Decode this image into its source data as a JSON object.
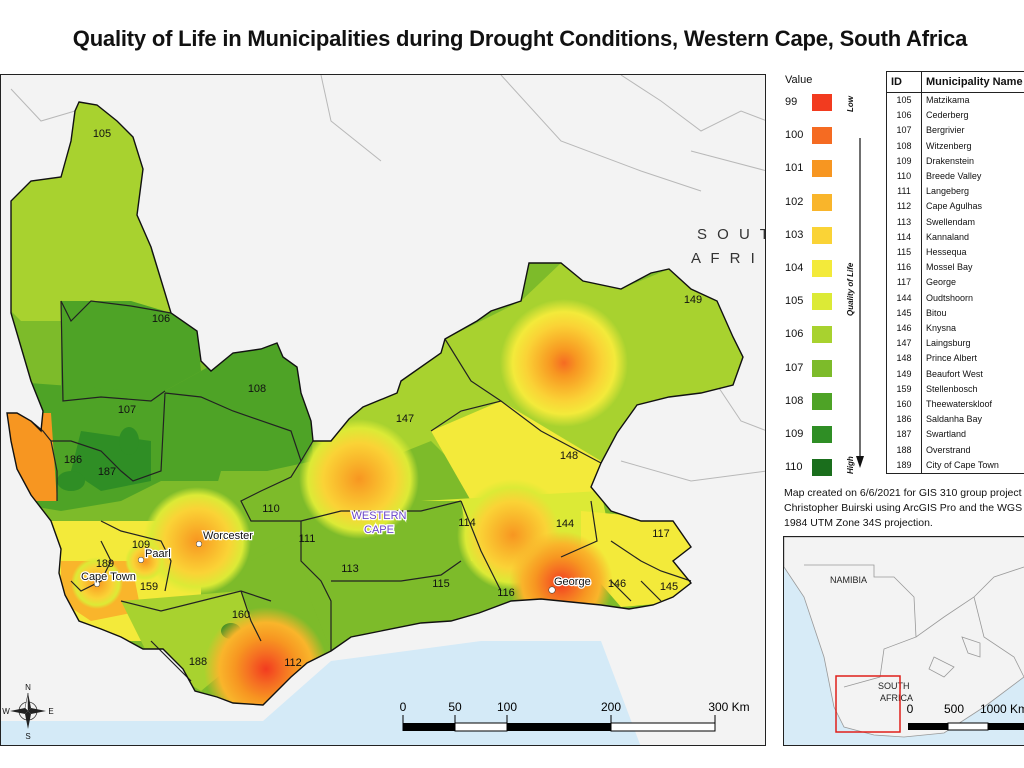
{
  "title": "Quality of Life in Municipalities during Drought Conditions, Western Cape, South Africa",
  "colors": {
    "ocean": "#d4eaf7",
    "land": "#f3f3f3",
    "boundary": "#222222",
    "highlight_box": "#e0201b"
  },
  "legend": {
    "header": "Value",
    "low_label": "Low",
    "high_label": "High",
    "axis_label": "Quality of Life",
    "items": [
      {
        "value": "99",
        "color": "#f23b1f"
      },
      {
        "value": "100",
        "color": "#f56b22"
      },
      {
        "value": "101",
        "color": "#f79621"
      },
      {
        "value": "102",
        "color": "#f9b52b"
      },
      {
        "value": "103",
        "color": "#fad336"
      },
      {
        "value": "104",
        "color": "#f3ea3a"
      },
      {
        "value": "105",
        "color": "#dcea36"
      },
      {
        "value": "106",
        "color": "#a8d22f"
      },
      {
        "value": "107",
        "color": "#7dbb2a"
      },
      {
        "value": "108",
        "color": "#4ea326"
      },
      {
        "value": "109",
        "color": "#2f8e25"
      },
      {
        "value": "110",
        "color": "#1a6e1c"
      }
    ]
  },
  "table": {
    "headers": [
      "ID",
      "Municipality Name"
    ],
    "rows": [
      [
        "105",
        "Matzikama"
      ],
      [
        "106",
        "Cederberg"
      ],
      [
        "107",
        "Bergrivier"
      ],
      [
        "108",
        "Witzenberg"
      ],
      [
        "109",
        "Drakenstein"
      ],
      [
        "110",
        "Breede Valley"
      ],
      [
        "111",
        "Langeberg"
      ],
      [
        "112",
        "Cape Agulhas"
      ],
      [
        "113",
        "Swellendam"
      ],
      [
        "114",
        "Kannaland"
      ],
      [
        "115",
        "Hessequa"
      ],
      [
        "116",
        "Mossel Bay"
      ],
      [
        "117",
        "George"
      ],
      [
        "144",
        "Oudtshoorn"
      ],
      [
        "145",
        "Bitou"
      ],
      [
        "146",
        "Knysna"
      ],
      [
        "147",
        "Laingsburg"
      ],
      [
        "148",
        "Prince Albert"
      ],
      [
        "149",
        "Beaufort West"
      ],
      [
        "159",
        "Stellenbosch"
      ],
      [
        "160",
        "Theewaterskloof"
      ],
      [
        "186",
        "Saldanha Bay"
      ],
      [
        "187",
        "Swartland"
      ],
      [
        "188",
        "Overstrand"
      ],
      [
        "189",
        "City of Cape Town"
      ]
    ]
  },
  "credits": "Map created on 6/6/2021 for GIS 310 group project by Christopher Buirski using ArcGIS Pro and the WGS 1984 UTM Zone 34S projection.",
  "map": {
    "country_label_1": "S O U T H",
    "country_label_2": "A F R I C",
    "province_label_1": "WESTERN",
    "province_label_2": "CAPE",
    "towns": [
      "Worcester",
      "Paarl",
      "Cape Town",
      "George"
    ],
    "municipality_labels": [
      "105",
      "106",
      "107",
      "108",
      "186",
      "187",
      "110",
      "147",
      "148",
      "149",
      "109",
      "111",
      "113",
      "114",
      "144",
      "117",
      "189",
      "159",
      "160",
      "115",
      "116",
      "146",
      "145",
      "188",
      "112"
    ],
    "compass": [
      "N",
      "E",
      "S",
      "W"
    ],
    "scale_ticks": [
      "0",
      "50",
      "100",
      "200",
      "300 Km"
    ]
  },
  "inset": {
    "country_1": "NAMIBIA",
    "country_2": "SOUTH",
    "country_3": "AFRICA",
    "scale_ticks": [
      "0",
      "500",
      "1000 Km"
    ]
  }
}
